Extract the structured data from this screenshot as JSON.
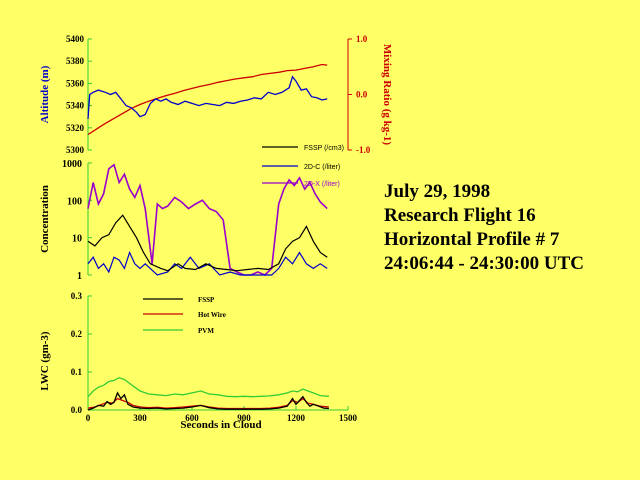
{
  "flight_info": {
    "date": "July 29, 1998",
    "flight": "Research Flight 16",
    "profile": "Horizontal Profile # 7",
    "time_range": "24:06:44 - 24:30:00 UTC"
  },
  "colors": {
    "background": "#ffff66",
    "axis_green": "#33cc33",
    "altitude": "#0000cc",
    "mixing_ratio": "#cc0000",
    "fssp_conc": "#000000",
    "twodc": "#0000cc",
    "twodx": "#9900cc",
    "fssp_lwc": "#000000",
    "hotwire": "#cc0000",
    "pvm": "#33cc33"
  },
  "chart_data": [
    {
      "type": "line",
      "panel": "altitude",
      "ylabel": "Altitude (m)",
      "ylabel_right": "Mixing Ratio (g kg-1)",
      "ylim": [
        5300,
        5400
      ],
      "yticks": [
        "5400",
        "5380",
        "5360",
        "5340",
        "5320",
        "5300"
      ],
      "ylim_right": [
        -1.0,
        1.0
      ],
      "yticks_right": [
        "1.0",
        "0.0",
        "-1.0"
      ],
      "xlim": [
        0,
        1500
      ],
      "grid": false,
      "series": [
        {
          "name": "Altitude",
          "axis": "left",
          "x": [
            0,
            10,
            30,
            60,
            100,
            130,
            160,
            190,
            220,
            250,
            280,
            300,
            330,
            360,
            390,
            420,
            450,
            480,
            520,
            560,
            600,
            640,
            680,
            720,
            760,
            800,
            840,
            880,
            920,
            960,
            1000,
            1040,
            1080,
            1120,
            1160,
            1180,
            1200,
            1230,
            1260,
            1290,
            1320,
            1350,
            1380
          ],
          "values": [
            5328,
            5350,
            5352,
            5354,
            5352,
            5350,
            5352,
            5346,
            5340,
            5338,
            5334,
            5330,
            5332,
            5342,
            5346,
            5344,
            5346,
            5343,
            5341,
            5344,
            5342,
            5340,
            5342,
            5341,
            5340,
            5343,
            5342,
            5344,
            5345,
            5347,
            5346,
            5352,
            5350,
            5352,
            5356,
            5366,
            5362,
            5354,
            5355,
            5348,
            5347,
            5345,
            5346
          ]
        },
        {
          "name": "Mixing Ratio",
          "axis": "right",
          "x": [
            0,
            50,
            100,
            150,
            200,
            250,
            300,
            350,
            400,
            450,
            500,
            550,
            600,
            650,
            700,
            750,
            800,
            850,
            900,
            950,
            1000,
            1050,
            1100,
            1150,
            1200,
            1250,
            1300,
            1350,
            1380
          ],
          "values": [
            -0.72,
            -0.62,
            -0.52,
            -0.43,
            -0.34,
            -0.25,
            -0.18,
            -0.12,
            -0.07,
            -0.02,
            0.02,
            0.07,
            0.11,
            0.15,
            0.18,
            0.22,
            0.25,
            0.28,
            0.3,
            0.32,
            0.36,
            0.38,
            0.4,
            0.43,
            0.44,
            0.47,
            0.5,
            0.54,
            0.53
          ]
        }
      ]
    },
    {
      "type": "line",
      "panel": "concentration",
      "ylabel": "Concentration",
      "yscale": "log",
      "ylim": [
        1,
        1000
      ],
      "yticks": [
        "1000",
        "100",
        "10",
        "1"
      ],
      "xlim": [
        0,
        1500
      ],
      "grid": false,
      "legend": "top-right",
      "series": [
        {
          "name": "FSSP (/cm3)",
          "x": [
            0,
            40,
            80,
            120,
            160,
            200,
            240,
            280,
            320,
            360,
            420,
            460,
            520,
            560,
            620,
            680,
            740,
            800,
            860,
            920,
            980,
            1040,
            1100,
            1140,
            1180,
            1220,
            1260,
            1300,
            1340,
            1380
          ],
          "values": [
            8,
            6,
            10,
            12,
            25,
            40,
            20,
            10,
            4,
            2,
            1.5,
            1.3,
            2,
            1.5,
            1.4,
            2,
            1.5,
            1.4,
            1.3,
            1.4,
            1.5,
            1.4,
            2,
            5,
            8,
            10,
            20,
            8,
            4,
            3
          ]
        },
        {
          "name": "2D-C (/liter)",
          "x": [
            0,
            30,
            60,
            90,
            120,
            150,
            180,
            210,
            240,
            270,
            300,
            330,
            400,
            460,
            500,
            540,
            590,
            640,
            700,
            760,
            820,
            880,
            940,
            1000,
            1060,
            1100,
            1140,
            1180,
            1220,
            1260,
            1300,
            1340,
            1380
          ],
          "values": [
            2,
            3,
            1.5,
            2,
            1.2,
            3,
            2.5,
            1.5,
            4,
            2,
            1.5,
            2,
            1,
            1.2,
            2,
            1.5,
            3,
            1.5,
            2,
            1,
            1.2,
            1,
            1,
            1,
            1,
            1.5,
            3,
            2,
            4,
            2,
            1.5,
            2,
            1.5
          ]
        },
        {
          "name": "2D-X (/liter)",
          "x": [
            0,
            30,
            60,
            90,
            120,
            150,
            180,
            210,
            240,
            270,
            300,
            330,
            370,
            400,
            430,
            460,
            500,
            540,
            580,
            620,
            660,
            700,
            740,
            780,
            820,
            860,
            900,
            940,
            980,
            1020,
            1060,
            1100,
            1130,
            1160,
            1190,
            1220,
            1250,
            1280,
            1310,
            1340,
            1380
          ],
          "values": [
            60,
            300,
            80,
            150,
            700,
            900,
            300,
            500,
            200,
            120,
            250,
            60,
            2,
            80,
            60,
            70,
            120,
            90,
            60,
            80,
            100,
            60,
            50,
            30,
            1.5,
            1.2,
            1,
            1,
            1.2,
            1,
            1.5,
            80,
            200,
            350,
            250,
            400,
            200,
            300,
            150,
            90,
            60
          ]
        }
      ]
    },
    {
      "type": "line",
      "panel": "lwc",
      "ylabel": "LWC (gm-3)",
      "xlabel": "Seconds in Cloud",
      "ylim": [
        0.0,
        0.3
      ],
      "yticks": [
        "0.3",
        "0.2",
        "0.1",
        "0.0"
      ],
      "xlim": [
        0,
        1500
      ],
      "xticks": [
        "0",
        "300",
        "600",
        "900",
        "1200",
        "1500"
      ],
      "grid": false,
      "legend": "top-center",
      "series": [
        {
          "name": "FSSP",
          "x": [
            0,
            30,
            60,
            90,
            110,
            130,
            150,
            170,
            190,
            210,
            230,
            260,
            300,
            350,
            400,
            450,
            500,
            550,
            600,
            650,
            700,
            750,
            800,
            850,
            900,
            950,
            1000,
            1050,
            1100,
            1150,
            1180,
            1200,
            1220,
            1240,
            1260,
            1280,
            1300,
            1330,
            1360,
            1390
          ],
          "values": [
            0.0,
            0.005,
            0.012,
            0.01,
            0.022,
            0.015,
            0.02,
            0.045,
            0.03,
            0.04,
            0.015,
            0.008,
            0.005,
            0.004,
            0.005,
            0.003,
            0.004,
            0.005,
            0.008,
            0.012,
            0.006,
            0.003,
            0.002,
            0.002,
            0.002,
            0.002,
            0.002,
            0.003,
            0.005,
            0.01,
            0.03,
            0.015,
            0.025,
            0.035,
            0.02,
            0.01,
            0.015,
            0.01,
            0.005,
            0.004
          ]
        },
        {
          "name": "Hot Wire",
          "x": [
            0,
            40,
            80,
            110,
            140,
            170,
            200,
            230,
            260,
            300,
            350,
            400,
            450,
            500,
            550,
            600,
            650,
            700,
            750,
            800,
            850,
            900,
            950,
            1000,
            1050,
            1100,
            1150,
            1180,
            1210,
            1240,
            1270,
            1300,
            1340,
            1390
          ],
          "values": [
            0.005,
            0.008,
            0.015,
            0.02,
            0.018,
            0.03,
            0.025,
            0.02,
            0.012,
            0.008,
            0.006,
            0.007,
            0.005,
            0.006,
            0.008,
            0.01,
            0.012,
            0.008,
            0.005,
            0.004,
            0.004,
            0.004,
            0.004,
            0.004,
            0.005,
            0.007,
            0.012,
            0.025,
            0.02,
            0.03,
            0.018,
            0.015,
            0.01,
            0.008
          ]
        },
        {
          "name": "PVM",
          "x": [
            0,
            30,
            60,
            90,
            120,
            150,
            180,
            210,
            240,
            270,
            300,
            350,
            400,
            450,
            500,
            550,
            600,
            650,
            700,
            750,
            800,
            850,
            900,
            950,
            1000,
            1050,
            1100,
            1150,
            1180,
            1210,
            1240,
            1270,
            1300,
            1340,
            1390
          ],
          "values": [
            0.035,
            0.05,
            0.06,
            0.065,
            0.075,
            0.078,
            0.085,
            0.08,
            0.07,
            0.06,
            0.05,
            0.042,
            0.04,
            0.038,
            0.042,
            0.04,
            0.045,
            0.05,
            0.042,
            0.04,
            0.036,
            0.035,
            0.036,
            0.035,
            0.036,
            0.037,
            0.04,
            0.045,
            0.05,
            0.048,
            0.055,
            0.05,
            0.045,
            0.038,
            0.036
          ]
        }
      ]
    }
  ]
}
